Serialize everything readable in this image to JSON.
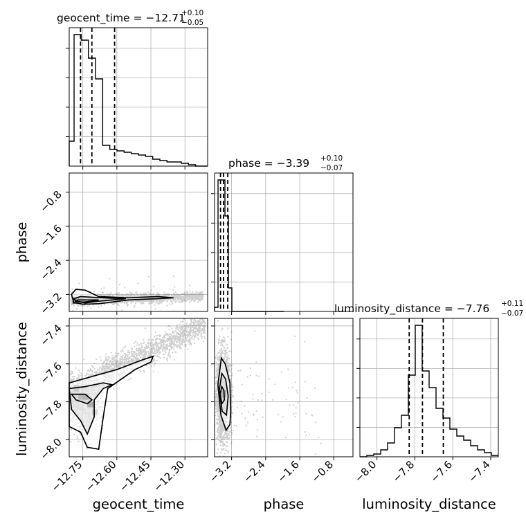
{
  "chart_data": {
    "type": "corner",
    "parameters": [
      "geocent_time",
      "phase",
      "luminosity_distance"
    ],
    "grid": true,
    "panels": {
      "geocent_time": {
        "title_prefix": "geocent_time = −12.71",
        "title_plus": "+0.10",
        "title_minus": "−0.05",
        "range": [
          -12.81,
          -12.2
        ],
        "hist_bins": [
          -12.81,
          -12.7885,
          -12.757,
          -12.7255,
          -12.694,
          -12.6625,
          -12.631,
          -12.5995,
          -12.568,
          -12.5365,
          -12.505,
          -12.4735,
          -12.442,
          -12.4105,
          -12.379,
          -12.3475,
          -12.316,
          -12.2845,
          -12.253,
          -12.2215,
          -12.2
        ],
        "hist_counts": [
          0.18,
          0.95,
          0.91,
          0.78,
          0.63,
          0.15,
          0.12,
          0.11,
          0.1,
          0.09,
          0.08,
          0.07,
          0.05,
          0.04,
          0.03,
          0.03,
          0.02,
          0.01,
          0.0,
          0.0
        ],
        "quantile_lines": [
          -12.76,
          -12.71,
          -12.61
        ],
        "y_ticks_visible": 4
      },
      "phase": {
        "title_prefix": "phase = −3.39",
        "title_plus": "+0.10",
        "title_minus": "−0.07",
        "range": [
          -3.6,
          -0.35
        ],
        "hist_bins": [
          -3.6,
          -3.5188,
          -3.4375,
          -3.3563,
          -3.275,
          -3.1938,
          -3.1125,
          -3.0313,
          -2.95,
          -2.8688,
          -2.7875,
          -2.7063,
          -2.625,
          -2.5438,
          -2.4625,
          -2.3813,
          -2.3,
          -2.2188,
          -2.1375,
          -2.0563,
          -1.975
        ],
        "hist_counts": [
          0.03,
          0.95,
          0.95,
          0.69,
          0.17,
          0.0,
          0.0,
          0.0,
          0.0,
          0.0,
          0.0,
          0.0,
          0.0,
          0.0,
          0.0,
          0.0,
          0.0,
          0.0,
          0.0,
          0.0
        ],
        "quantile_lines": [
          -3.46,
          -3.39,
          -3.29
        ],
        "x_ticks": [
          -3.2,
          -2.4,
          -1.6,
          -0.8
        ],
        "x_tick_labels": [
          "−3.2",
          "−2.4",
          "−1.6",
          "−0.8"
        ],
        "xlabel": "phase"
      },
      "luminosity_distance": {
        "title_prefix": "luminosity_distance = −7.76",
        "title_plus": "+0.11",
        "title_minus": "−0.07",
        "range": [
          -8.09,
          -7.36
        ],
        "hist_bins": [
          -8.09,
          -8.0535,
          -8.017,
          -7.9805,
          -7.944,
          -7.9075,
          -7.871,
          -7.8345,
          -7.798,
          -7.7615,
          -7.725,
          -7.6885,
          -7.652,
          -7.6155,
          -7.579,
          -7.5425,
          -7.506,
          -7.4695,
          -7.433,
          -7.3965,
          -7.36
        ],
        "hist_counts": [
          0.0,
          0.01,
          0.02,
          0.05,
          0.1,
          0.21,
          0.3,
          0.59,
          0.95,
          0.62,
          0.5,
          0.35,
          0.28,
          0.2,
          0.15,
          0.12,
          0.08,
          0.05,
          0.03,
          0.01
        ],
        "quantile_lines": [
          -7.83,
          -7.76,
          -7.65
        ],
        "x_ticks": [
          -8.0,
          -7.8,
          -7.6,
          -7.4
        ],
        "x_tick_labels": [
          "−8.0",
          "−7.8",
          "−7.6",
          "−7.4"
        ],
        "xlabel": "luminosity_distance"
      }
    },
    "axes": {
      "geocent_time": {
        "ticks": [
          -12.75,
          -12.6,
          -12.45,
          -12.3
        ],
        "tick_labels": [
          "−12.75",
          "−12.60",
          "−12.45",
          "−12.30"
        ],
        "label": "geocent_time"
      },
      "phase_y": {
        "ticks": [
          -0.8,
          -1.6,
          -2.4,
          -3.2
        ],
        "tick_labels": [
          "−0.8",
          "−1.6",
          "−2.4",
          "−3.2"
        ],
        "label": "phase"
      },
      "luminosity_distance_y": {
        "ticks": [
          -7.4,
          -7.6,
          -7.8,
          -8.0
        ],
        "tick_labels": [
          "−7.4",
          "−7.6",
          "−7.8",
          "−8.0"
        ],
        "label": "luminosity_distance"
      }
    },
    "scatter_2d": {
      "geocent_time_vs_phase": {
        "description_of_density": "tight band near phase -3.3, broad in geocent_time",
        "core": {
          "x": -12.76,
          "y": -3.35
        },
        "contours": [
          [
            [
              -12.79,
              -3.39
            ],
            [
              -12.75,
              -3.43
            ],
            [
              -12.68,
              -3.42
            ],
            [
              -12.55,
              -3.33
            ],
            [
              -12.42,
              -3.3
            ],
            [
              -12.35,
              -3.28
            ],
            [
              -12.42,
              -3.25
            ],
            [
              -12.55,
              -3.28
            ],
            [
              -12.68,
              -3.25
            ],
            [
              -12.74,
              -3.1
            ],
            [
              -12.78,
              -3.08
            ],
            [
              -12.8,
              -3.2
            ],
            [
              -12.79,
              -3.39
            ]
          ],
          [
            [
              -12.78,
              -3.36
            ],
            [
              -12.74,
              -3.4
            ],
            [
              -12.68,
              -3.36
            ],
            [
              -12.62,
              -3.33
            ],
            [
              -12.56,
              -3.3
            ],
            [
              -12.62,
              -3.29
            ],
            [
              -12.7,
              -3.27
            ],
            [
              -12.76,
              -3.25
            ],
            [
              -12.79,
              -3.3
            ],
            [
              -12.78,
              -3.36
            ]
          ],
          [
            [
              -12.785,
              -3.36
            ],
            [
              -12.75,
              -3.38
            ],
            [
              -12.71,
              -3.36
            ],
            [
              -12.68,
              -3.33
            ],
            [
              -12.72,
              -3.33
            ],
            [
              -12.77,
              -3.33
            ],
            [
              -12.785,
              -3.36
            ]
          ]
        ]
      },
      "geocent_time_vs_luminosity_distance": {
        "core": {
          "x": -12.74,
          "y": -7.77
        },
        "contours": [
          [
            [
              -12.81,
              -7.7
            ],
            [
              -12.72,
              -7.67
            ],
            [
              -12.6,
              -7.63
            ],
            [
              -12.49,
              -7.58
            ],
            [
              -12.44,
              -7.56
            ],
            [
              -12.45,
              -7.59
            ],
            [
              -12.52,
              -7.63
            ],
            [
              -12.64,
              -7.73
            ],
            [
              -12.66,
              -7.88
            ],
            [
              -12.68,
              -8.05
            ],
            [
              -12.73,
              -8.04
            ],
            [
              -12.76,
              -7.96
            ],
            [
              -12.81,
              -7.93
            ],
            [
              -12.81,
              -7.7
            ]
          ],
          [
            [
              -12.81,
              -7.73
            ],
            [
              -12.74,
              -7.72
            ],
            [
              -12.66,
              -7.7
            ],
            [
              -12.62,
              -7.71
            ],
            [
              -12.66,
              -7.73
            ],
            [
              -12.7,
              -7.79
            ],
            [
              -12.7,
              -7.88
            ],
            [
              -12.73,
              -7.97
            ],
            [
              -12.76,
              -7.9
            ],
            [
              -12.8,
              -7.84
            ],
            [
              -12.81,
              -7.73
            ]
          ],
          [
            [
              -12.8,
              -7.76
            ],
            [
              -12.74,
              -7.76
            ],
            [
              -12.71,
              -7.79
            ],
            [
              -12.73,
              -7.81
            ],
            [
              -12.78,
              -7.79
            ],
            [
              -12.8,
              -7.76
            ]
          ]
        ]
      },
      "phase_vs_luminosity_distance": {
        "core": {
          "x": -3.43,
          "y": -7.76
        },
        "contours": [
          [
            [
              -3.44,
              -7.57
            ],
            [
              -3.35,
              -7.6
            ],
            [
              -3.24,
              -7.7
            ],
            [
              -3.22,
              -7.85
            ],
            [
              -3.24,
              -7.92
            ],
            [
              -3.33,
              -7.95
            ],
            [
              -3.45,
              -7.87
            ],
            [
              -3.52,
              -7.71
            ],
            [
              -3.44,
              -7.57
            ]
          ],
          [
            [
              -3.43,
              -7.65
            ],
            [
              -3.34,
              -7.68
            ],
            [
              -3.28,
              -7.77
            ],
            [
              -3.32,
              -7.87
            ],
            [
              -3.42,
              -7.85
            ],
            [
              -3.49,
              -7.74
            ],
            [
              -3.43,
              -7.65
            ]
          ],
          [
            [
              -3.43,
              -7.72
            ],
            [
              -3.38,
              -7.74
            ],
            [
              -3.37,
              -7.79
            ],
            [
              -3.43,
              -7.81
            ],
            [
              -3.47,
              -7.76
            ],
            [
              -3.43,
              -7.72
            ]
          ]
        ]
      }
    }
  }
}
